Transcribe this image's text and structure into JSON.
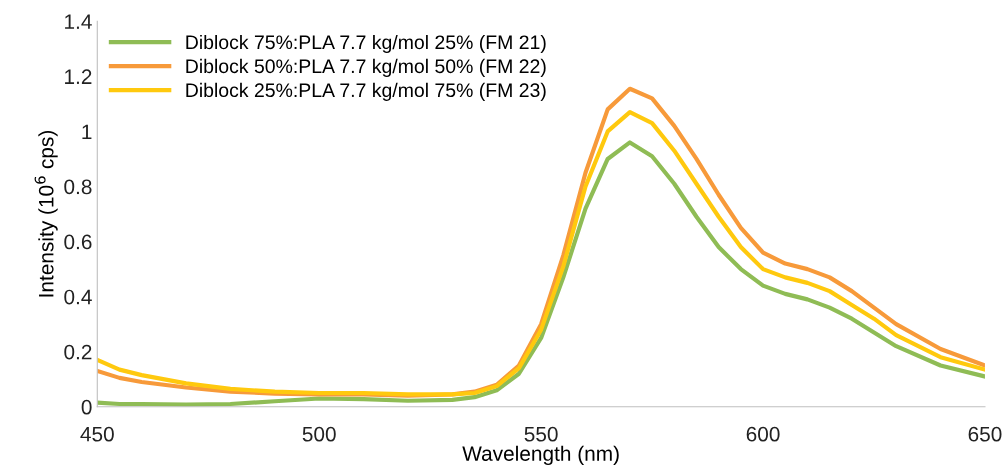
{
  "chart_data": {
    "type": "line",
    "xlabel": "Wavelength (nm)",
    "ylabel": "Intensity (10$^{6}$ cps)",
    "x": [
      450,
      455,
      460,
      470,
      480,
      490,
      500,
      510,
      520,
      530,
      535,
      540,
      545,
      550,
      555,
      560,
      565,
      570,
      575,
      580,
      585,
      590,
      595,
      600,
      605,
      610,
      615,
      620,
      625,
      630,
      640,
      650
    ],
    "series": [
      {
        "name": "Diblock 75%:PLA 7.7 kg/mol 25% (FM 21)",
        "color": "#8fbc55",
        "values": [
          0.015,
          0.01,
          0.01,
          0.008,
          0.01,
          0.02,
          0.03,
          0.028,
          0.022,
          0.025,
          0.035,
          0.06,
          0.12,
          0.25,
          0.47,
          0.72,
          0.9,
          0.96,
          0.91,
          0.81,
          0.69,
          0.58,
          0.5,
          0.44,
          0.41,
          0.39,
          0.36,
          0.32,
          0.27,
          0.22,
          0.15,
          0.11
        ]
      },
      {
        "name": "Diblock 50%:PLA 7.7 kg/mol 50% (FM 22)",
        "color": "#f79a3a",
        "values": [
          0.13,
          0.105,
          0.09,
          0.07,
          0.055,
          0.048,
          0.045,
          0.045,
          0.04,
          0.045,
          0.055,
          0.08,
          0.15,
          0.3,
          0.55,
          0.85,
          1.08,
          1.155,
          1.12,
          1.02,
          0.9,
          0.77,
          0.65,
          0.56,
          0.52,
          0.5,
          0.47,
          0.42,
          0.36,
          0.3,
          0.21,
          0.15
        ]
      },
      {
        "name": "Diblock 25%:PLA 7.7 kg/mol 75% (FM 23)",
        "color": "#ffc90e",
        "values": [
          0.17,
          0.135,
          0.115,
          0.085,
          0.065,
          0.055,
          0.05,
          0.05,
          0.045,
          0.045,
          0.05,
          0.075,
          0.14,
          0.28,
          0.51,
          0.8,
          1.0,
          1.07,
          1.03,
          0.93,
          0.81,
          0.69,
          0.58,
          0.5,
          0.47,
          0.45,
          0.42,
          0.37,
          0.32,
          0.26,
          0.18,
          0.135
        ]
      }
    ],
    "xlim": [
      450,
      650
    ],
    "xticks": [
      450,
      500,
      550,
      600,
      650
    ],
    "ylim": [
      0,
      1.4
    ],
    "yticks": [
      0,
      0.2,
      0.4,
      0.6,
      0.8,
      1,
      1.2,
      1.4
    ],
    "grid": false,
    "legend": "top left",
    "marker": "none",
    "line_style": "solid"
  }
}
